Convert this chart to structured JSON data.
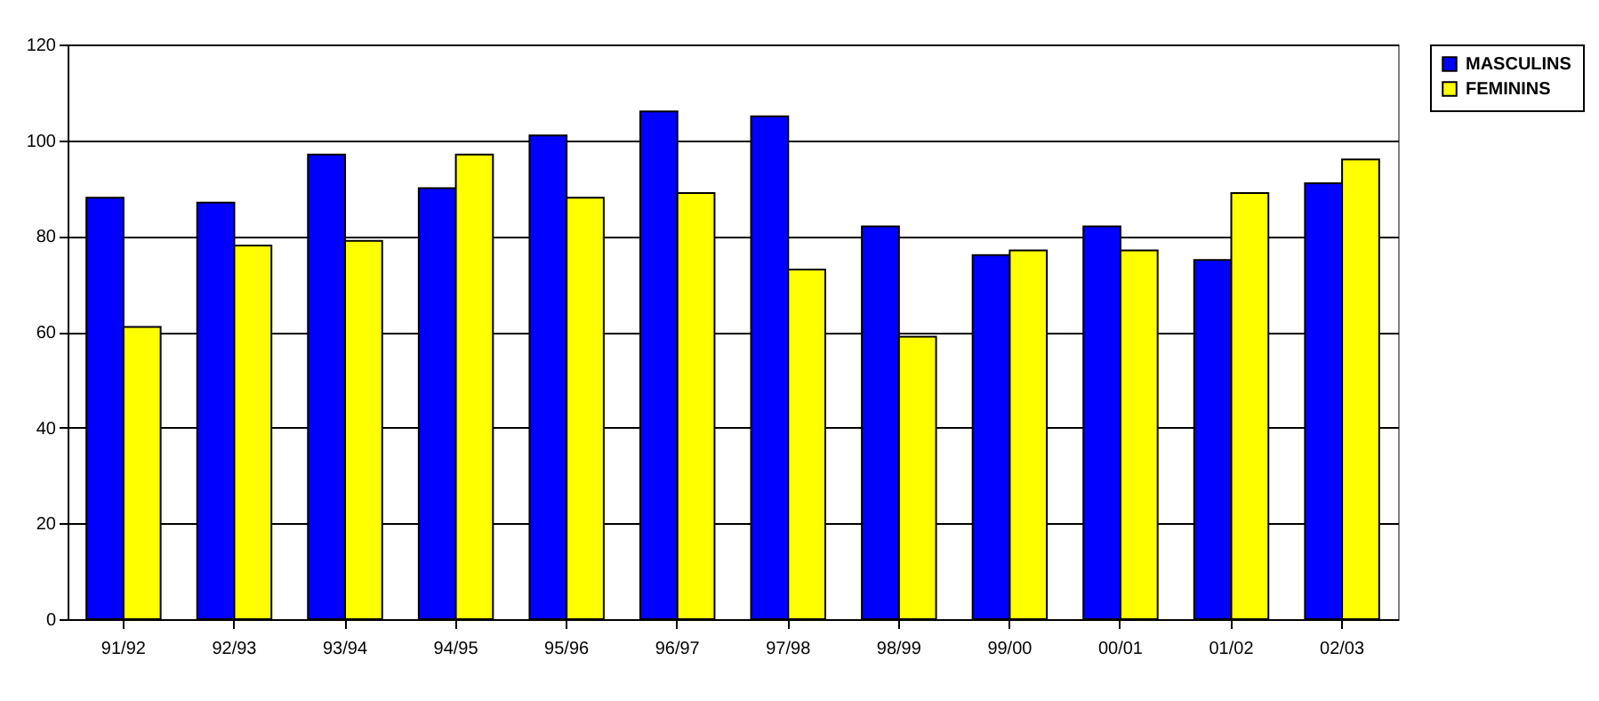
{
  "chart_data": {
    "type": "bar",
    "categories": [
      "91/92",
      "92/93",
      "93/94",
      "94/95",
      "95/96",
      "96/97",
      "97/98",
      "98/99",
      "99/00",
      "00/01",
      "01/02",
      "02/03"
    ],
    "series": [
      {
        "name": "MASCULINS",
        "color": "#0000ff",
        "values": [
          88,
          87,
          97,
          90,
          101,
          106,
          105,
          82,
          76,
          82,
          75,
          91
        ]
      },
      {
        "name": "FEMININS",
        "color": "#ffff00",
        "values": [
          61,
          78,
          79,
          97,
          88,
          89,
          73,
          59,
          77,
          77,
          89,
          96
        ]
      }
    ],
    "ylim": [
      0,
      120
    ],
    "yticks": [
      0,
      20,
      40,
      60,
      80,
      100,
      120
    ],
    "grid": "y",
    "legend": "right"
  }
}
